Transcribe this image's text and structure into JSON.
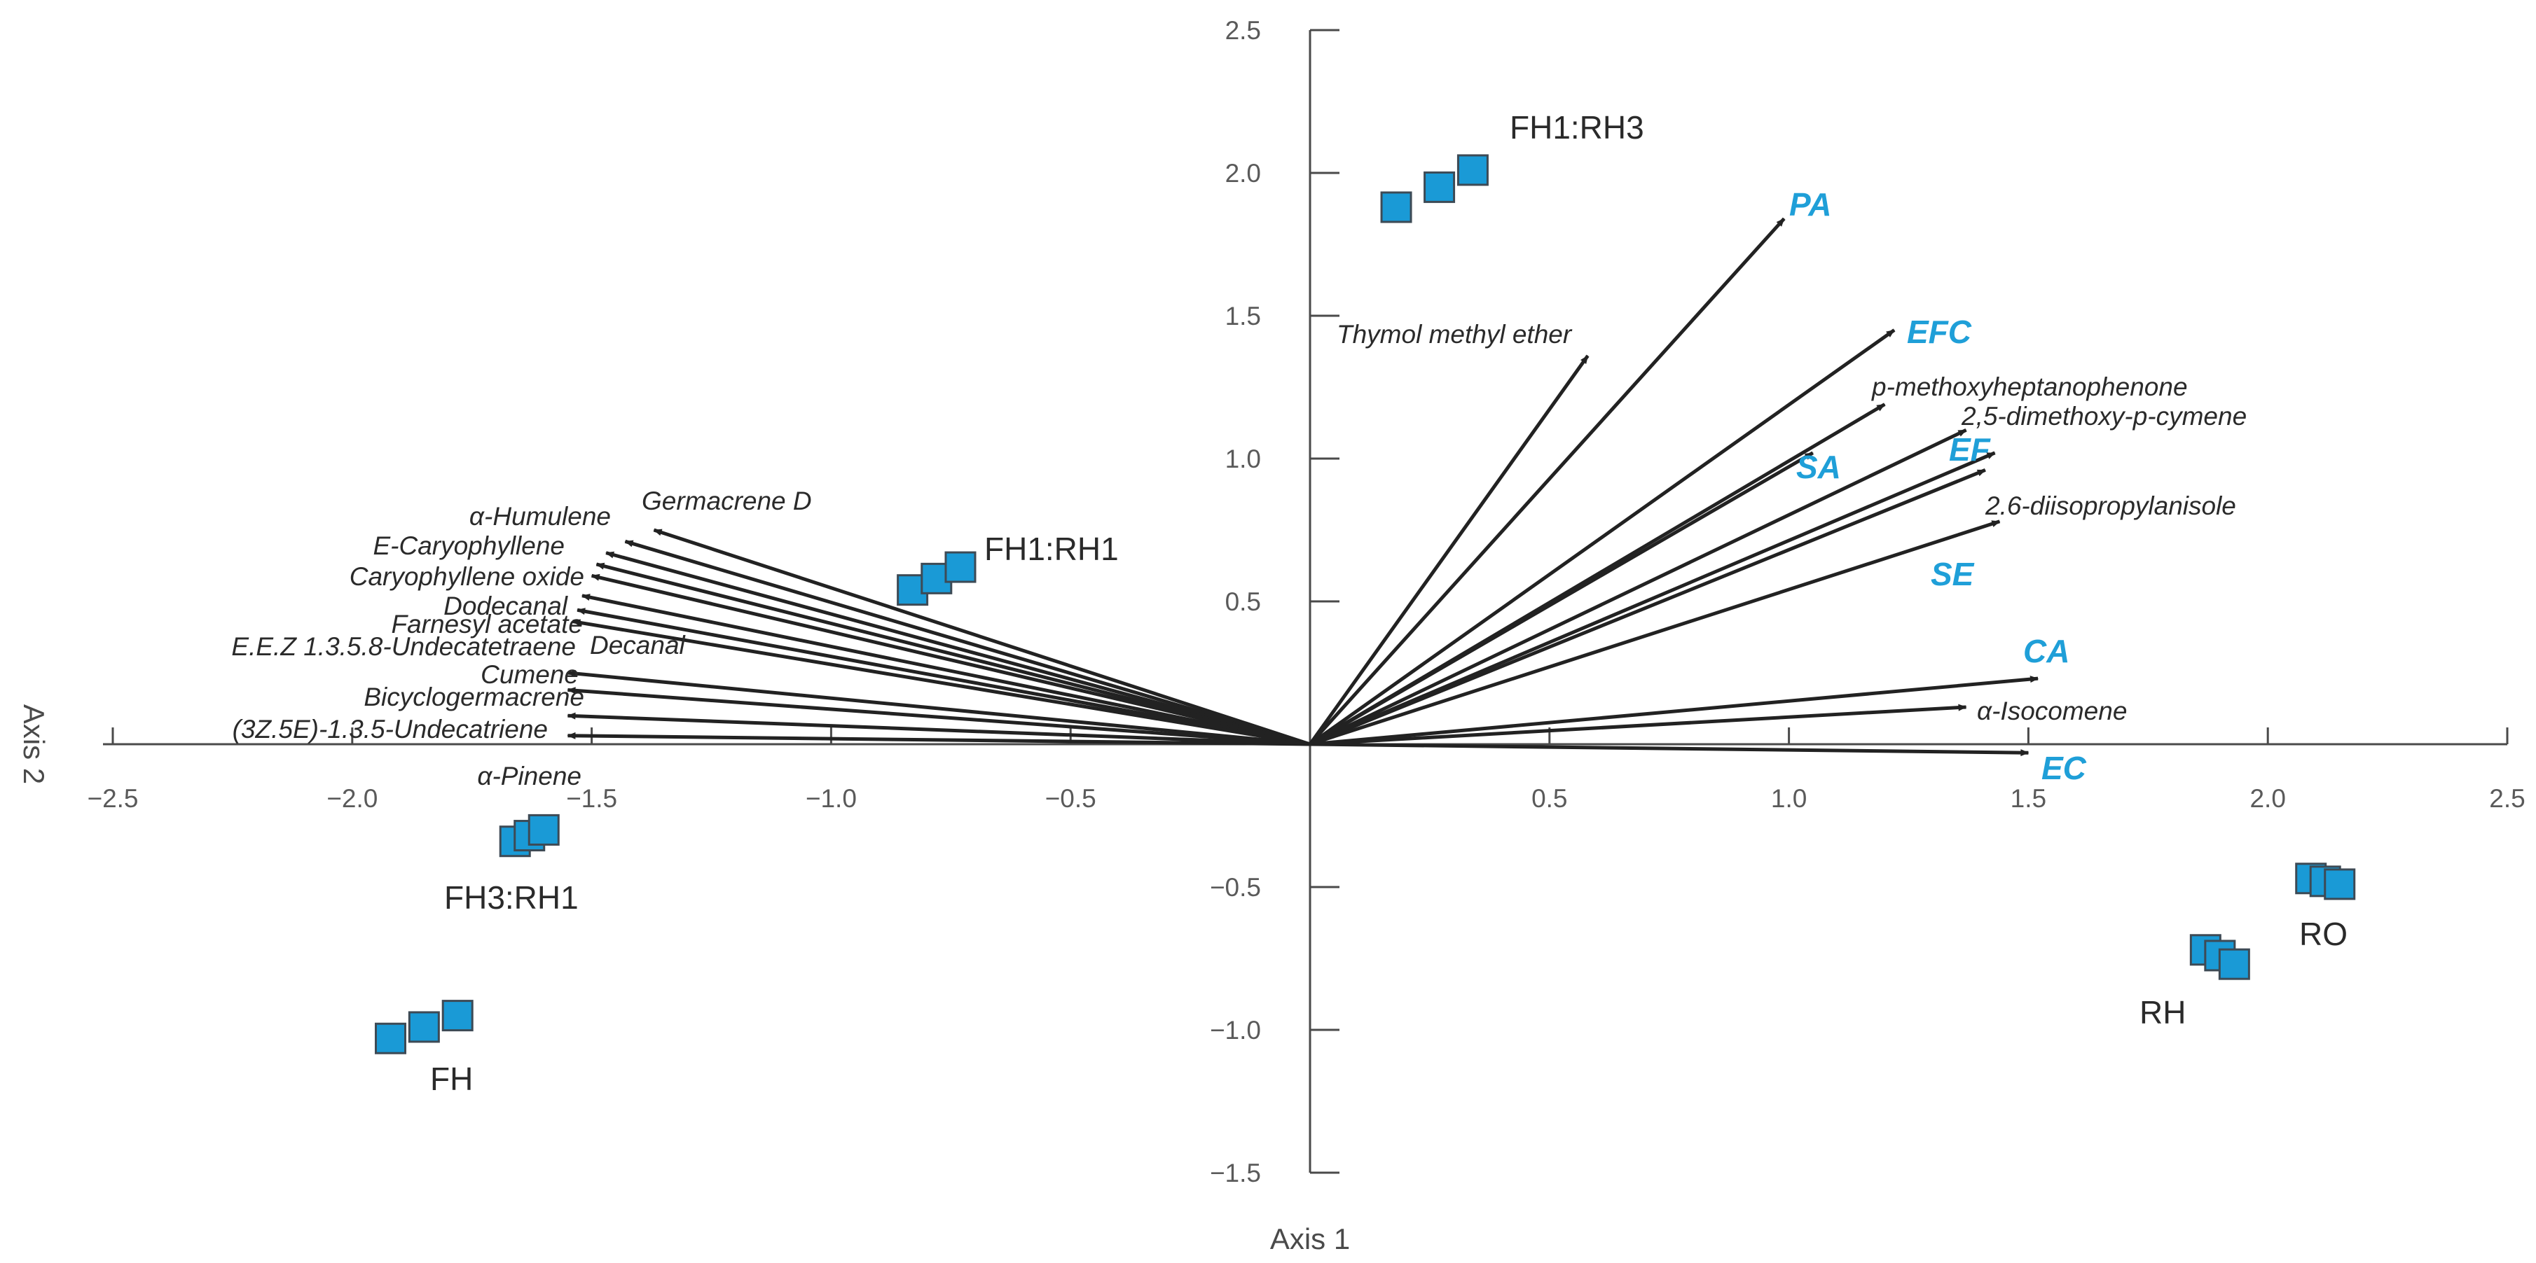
{
  "chart_data": {
    "type": "scatter",
    "subtype": "biplot",
    "title": "",
    "xlabel": "Axis 1",
    "ylabel": "Axis 2",
    "xlim": [
      -2.5,
      2.5
    ],
    "ylim": [
      -1.5,
      2.5
    ],
    "x_ticks": [
      -2.5,
      -2.0,
      -1.5,
      -1.0,
      -0.5,
      0.5,
      1.0,
      1.5,
      2.0,
      2.5
    ],
    "x_tick_labels": [
      "−2.5",
      "−2.0",
      "−1.5",
      "−1.0",
      "−0.5",
      "0.5",
      "1.0",
      "1.5",
      "2.0",
      "2.5"
    ],
    "y_ticks": [
      -1.5,
      -1.0,
      -0.5,
      0.5,
      1.0,
      1.5,
      2.0,
      2.5
    ],
    "y_tick_labels": [
      "−1.5",
      "−1.0",
      "−0.5",
      "0.5",
      "1.0",
      "1.5",
      "2.0",
      "2.5"
    ],
    "grid": false,
    "sample_groups": [
      {
        "name": "FH1:RH3",
        "points": [
          [
            0.18,
            1.88
          ],
          [
            0.27,
            1.95
          ],
          [
            0.34,
            2.01
          ]
        ]
      },
      {
        "name": "FH1:RH1",
        "points": [
          [
            -0.83,
            0.54
          ],
          [
            -0.78,
            0.58
          ],
          [
            -0.73,
            0.62
          ]
        ]
      },
      {
        "name": "FH3:RH1",
        "points": [
          [
            -1.66,
            -0.34
          ],
          [
            -1.63,
            -0.32
          ],
          [
            -1.6,
            -0.3
          ]
        ]
      },
      {
        "name": "FH",
        "points": [
          [
            -1.92,
            -1.03
          ],
          [
            -1.85,
            -0.99
          ],
          [
            -1.78,
            -0.95
          ]
        ]
      },
      {
        "name": "RH",
        "points": [
          [
            1.87,
            -0.72
          ],
          [
            1.9,
            -0.74
          ],
          [
            1.93,
            -0.77
          ]
        ]
      },
      {
        "name": "RO",
        "points": [
          [
            2.09,
            -0.47
          ],
          [
            2.12,
            -0.48
          ],
          [
            2.15,
            -0.49
          ]
        ]
      }
    ],
    "response_vectors": [
      {
        "name": "PA",
        "x": 0.99,
        "y": 1.84
      },
      {
        "name": "EFC",
        "x": 1.22,
        "y": 1.45
      },
      {
        "name": "SA",
        "x": 1.05,
        "y": 1.02
      },
      {
        "name": "EF",
        "x": 1.43,
        "y": 1.02
      },
      {
        "name": "SE",
        "x": 1.44,
        "y": 0.78
      },
      {
        "name": "CA",
        "x": 1.52,
        "y": 0.23
      },
      {
        "name": "EC",
        "x": 1.5,
        "y": -0.03
      }
    ],
    "compound_vectors": [
      {
        "name": "Thymol methyl ether",
        "x": 0.58,
        "y": 1.36
      },
      {
        "name": "p-methoxyheptanophenone",
        "x": 1.2,
        "y": 1.19
      },
      {
        "name": "2,5-dimethoxy-p-cymene",
        "x": 1.37,
        "y": 1.1
      },
      {
        "name": "2.6-diisopropylanisole",
        "x": 1.41,
        "y": 0.96
      },
      {
        "name": "α-Isocomene",
        "x": 1.37,
        "y": 0.13
      },
      {
        "name": "Germacrene D",
        "x": -1.37,
        "y": 0.75
      },
      {
        "name": "α-Humulene",
        "x": -1.43,
        "y": 0.71
      },
      {
        "name": "E-Caryophyllene",
        "x": -1.47,
        "y": 0.67
      },
      {
        "name": "Caryophyllene oxide",
        "x": -1.49,
        "y": 0.63
      },
      {
        "name": "Dodecanal",
        "x": -1.5,
        "y": 0.59
      },
      {
        "name": "Farnesyl acetate",
        "x": -1.52,
        "y": 0.52
      },
      {
        "name": "E.E.Z 1.3.5.8-Undecatetraene",
        "x": -1.53,
        "y": 0.47
      },
      {
        "name": "Decanal",
        "x": -1.54,
        "y": 0.43
      },
      {
        "name": "Cumene",
        "x": -1.55,
        "y": 0.25
      },
      {
        "name": "Bicyclogermacrene",
        "x": -1.55,
        "y": 0.19
      },
      {
        "name": "(3Z.5E)-1.3.5-Undecatriene",
        "x": -1.55,
        "y": 0.1
      },
      {
        "name": "α-Pinene",
        "x": -1.55,
        "y": 0.03
      }
    ]
  },
  "colors": {
    "point_fill": "#1a9ad6",
    "point_stroke": "#3d4a55",
    "response_label": "#1f9fd8",
    "vector": "#222222",
    "axis": "#4a4a4a"
  }
}
